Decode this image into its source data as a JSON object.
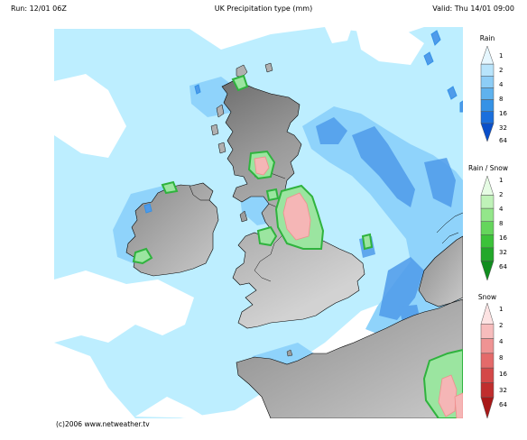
{
  "header": {
    "run": "Run: 12/01 06Z",
    "title": "UK Precipitation type (mm)",
    "valid": "Valid: Thu 14/01 09:00"
  },
  "credit": "(c)2006 www.netweather.tv",
  "legends": [
    {
      "title": "Rain",
      "ticks": [
        "1",
        "2",
        "4",
        "8",
        "16",
        "32",
        "64"
      ],
      "colors": [
        "#e6f7ff",
        "#b8e4fb",
        "#8dcdf6",
        "#5fb2ee",
        "#3592e6",
        "#1a6fdd",
        "#0a4fc9"
      ]
    },
    {
      "title": "Rain / Snow",
      "ticks": [
        "1",
        "2",
        "4",
        "8",
        "16",
        "32",
        "64"
      ],
      "colors": [
        "#e6fce4",
        "#bff2b8",
        "#93e68a",
        "#65d55c",
        "#3cc23a",
        "#22a82a",
        "#118d1f"
      ]
    },
    {
      "title": "Snow",
      "ticks": [
        "1",
        "2",
        "4",
        "8",
        "16",
        "32",
        "64"
      ],
      "colors": [
        "#fde3e3",
        "#f7bcbc",
        "#ef9393",
        "#e46a6a",
        "#d44848",
        "#c02e2e",
        "#a81818"
      ]
    }
  ],
  "colors": {
    "sea": "#ffffff",
    "rain_light": "#bdeeff",
    "rain_mid": "#8fd3fb",
    "rain_heavy": "#4f9bea",
    "mixed": "#9be5a0",
    "mixed_edge": "#2fb33e",
    "snow": "#f5b6b6",
    "land": "#b9b9b9",
    "terrain_dark": "#7c7c7c",
    "coast": "#000000"
  }
}
